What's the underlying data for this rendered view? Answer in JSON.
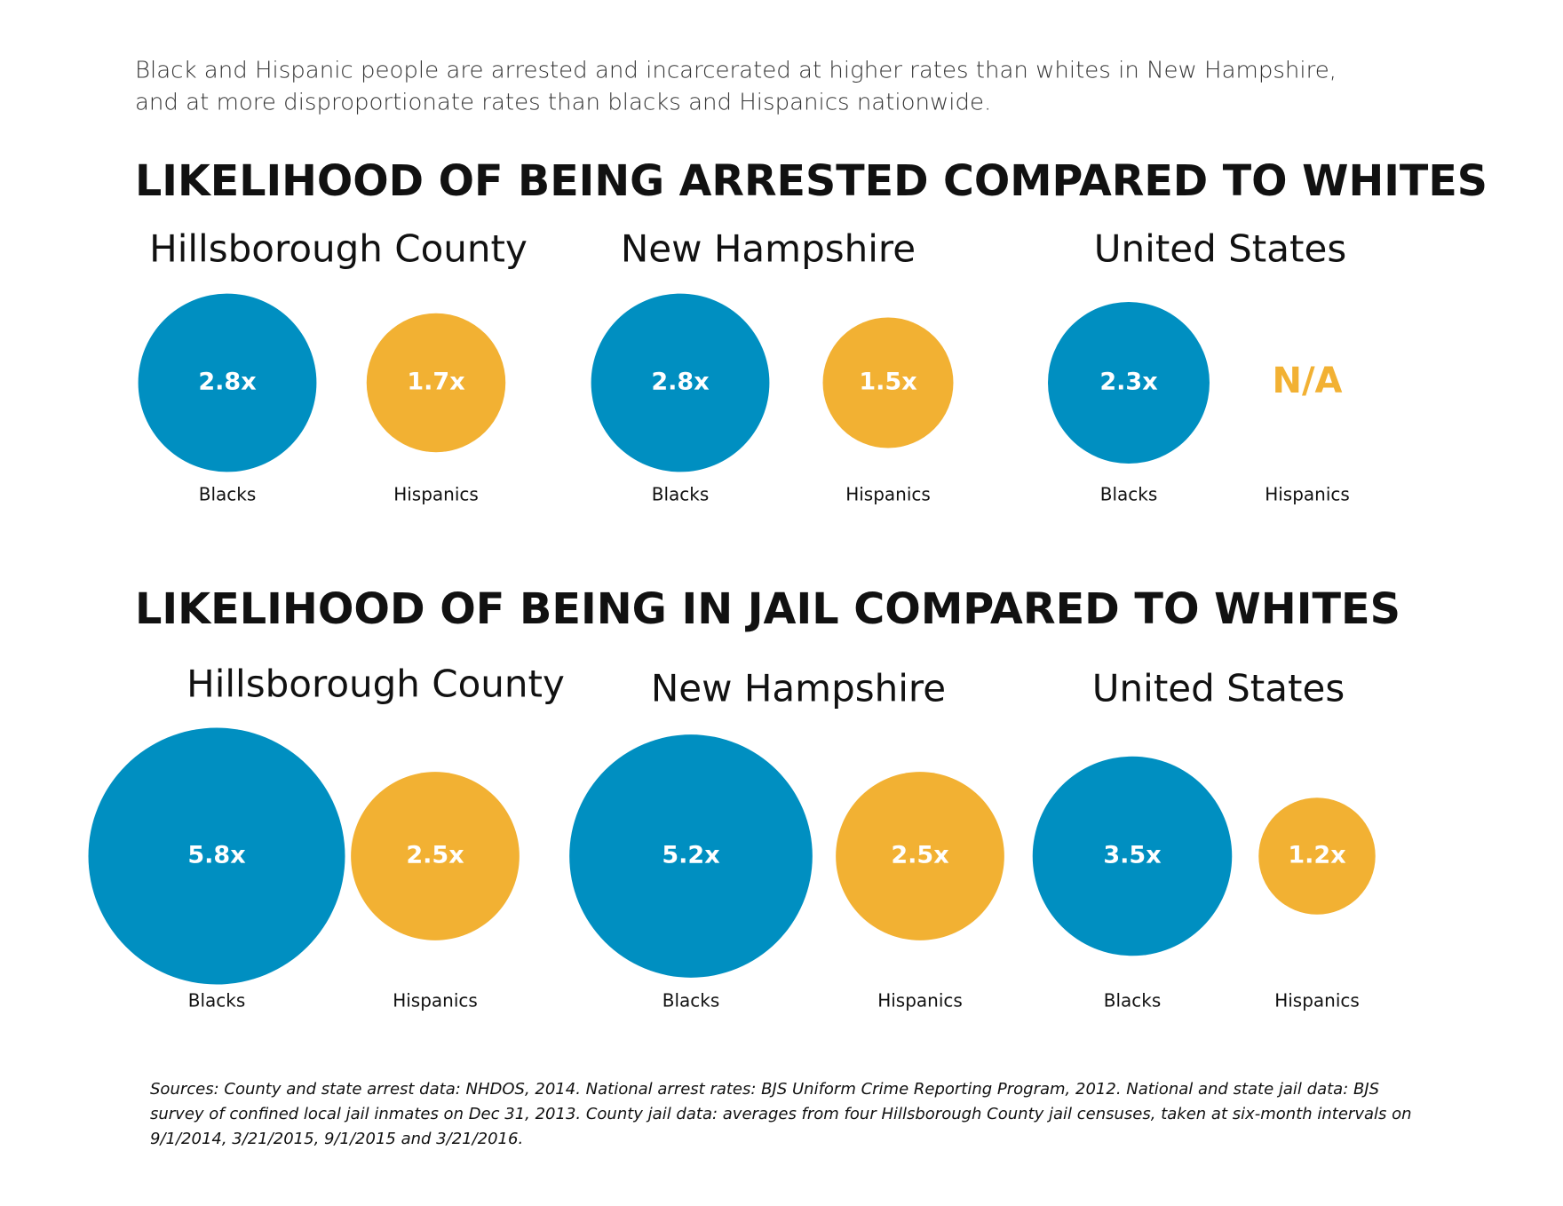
{
  "intro": [
    "Black and Hispanic people are arrested and incarcerated at higher rates than whites in New Hampshire,",
    "and at more disproportionate rates than blacks and Hispanics nationwide."
  ],
  "chart_data": [
    {
      "type": "bubble",
      "title": "LIKELIHOOD OF BEING ARRESTED COMPARED TO WHITES",
      "categories": [
        "Hillsborough County",
        "New Hampshire",
        "United States"
      ],
      "series": [
        {
          "name": "Blacks",
          "color": "#008fc1",
          "values": [
            2.8,
            2.8,
            2.3
          ],
          "value_labels": [
            "2.8x",
            "2.8x",
            "2.3x"
          ]
        },
        {
          "name": "Hispanics",
          "color": "#f2b133",
          "values": [
            1.7,
            1.5,
            null
          ],
          "value_labels": [
            "1.7x",
            "1.5x",
            "N/A"
          ]
        }
      ]
    },
    {
      "type": "bubble",
      "title": "LIKELIHOOD OF BEING IN JAIL COMPARED TO WHITES",
      "categories": [
        "Hillsborough County",
        "New Hampshire",
        "United States"
      ],
      "series": [
        {
          "name": "Blacks",
          "color": "#008fc1",
          "values": [
            5.8,
            5.2,
            3.5
          ],
          "value_labels": [
            "5.8x",
            "5.2x",
            "3.5x"
          ]
        },
        {
          "name": "Hispanics",
          "color": "#f2b133",
          "values": [
            2.5,
            2.5,
            1.2
          ],
          "value_labels": [
            "2.5x",
            "2.5x",
            "1.2x"
          ]
        }
      ]
    }
  ],
  "footnote": [
    "Sources: County and state arrest data: NHDOS, 2014. National arrest rates: BJS Uniform Crime Reporting Program, 2012.  National and state jail data: BJS",
    "survey of confined local jail inmates on Dec 31, 2013. County jail data: averages from four Hillsborough County jail censuses, taken at six-month intervals on",
    "9/1/2014, 3/21/2015, 9/1/2015 and 3/21/2016."
  ]
}
